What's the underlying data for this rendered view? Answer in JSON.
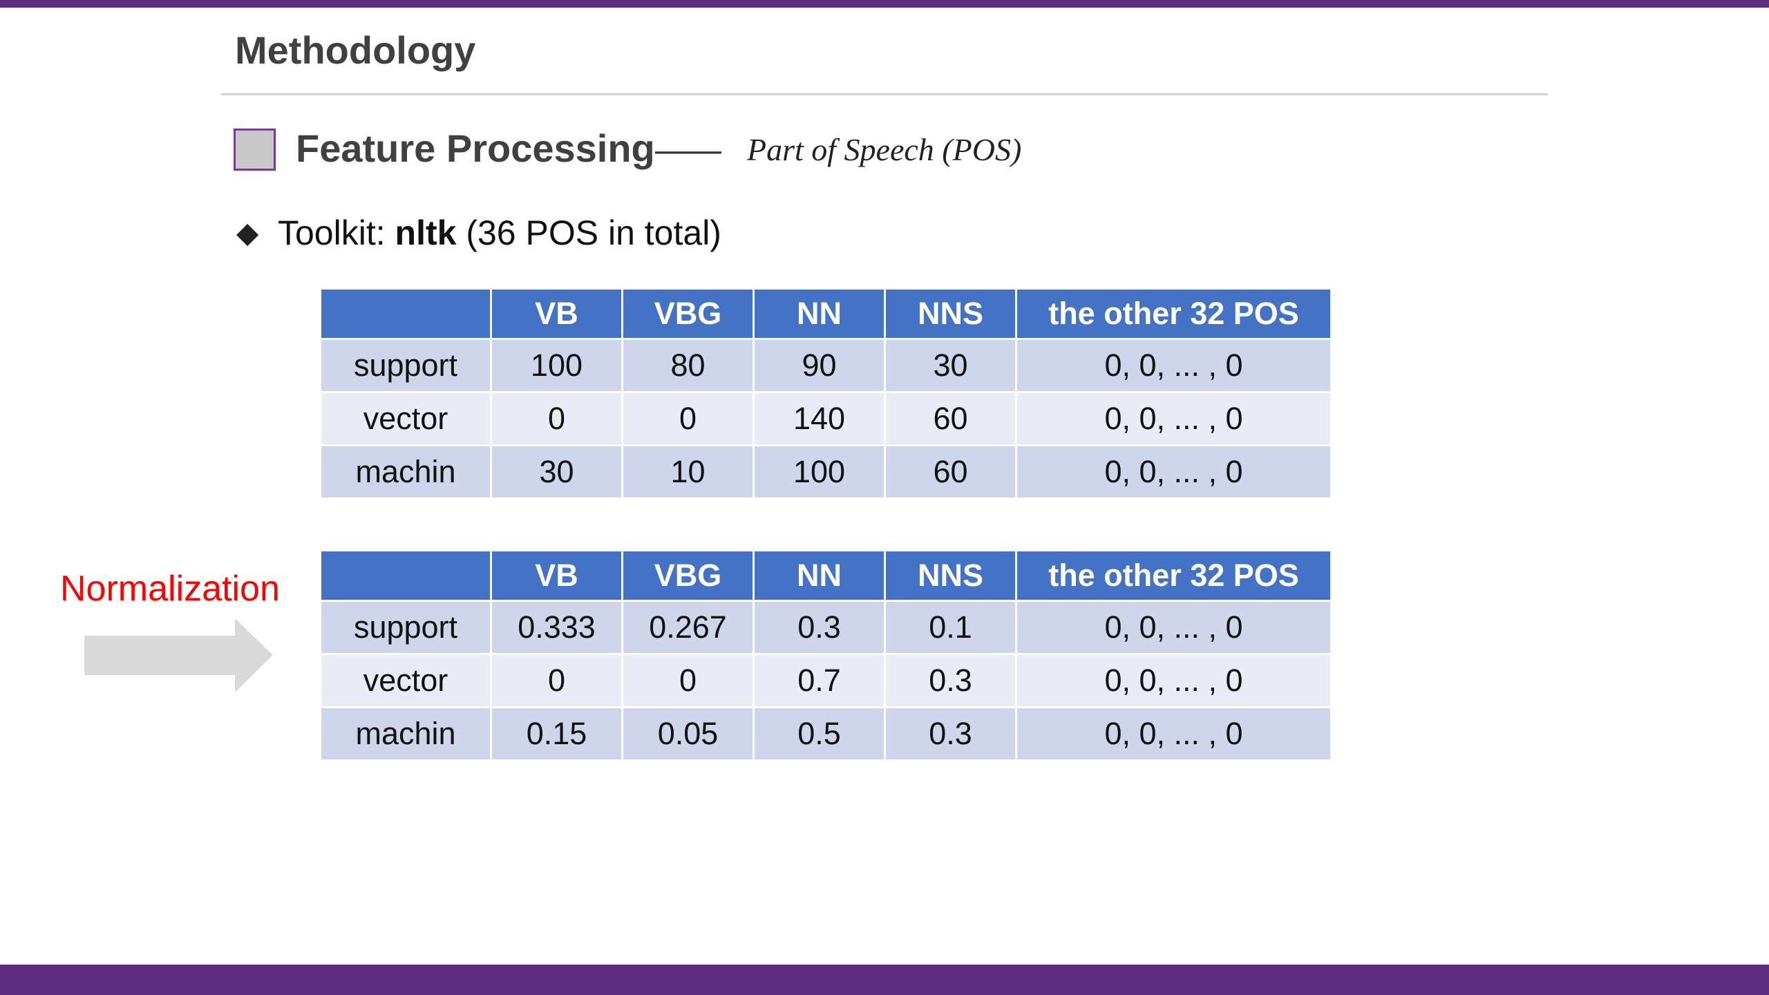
{
  "header": {
    "title": "Methodology"
  },
  "section": {
    "heading": "Feature Processing",
    "dash": "——",
    "subtitle": "Part of Speech (POS)"
  },
  "toolkit": {
    "label": "Toolkit:",
    "name": "nltk",
    "note": "(36 POS in total)"
  },
  "arrow_label": "Normalization",
  "tables": [
    {
      "header": [
        null,
        "VB",
        "VBG",
        "NN",
        "NNS",
        "the other 32 POS"
      ],
      "rows": [
        [
          "support",
          "100",
          "80",
          "90",
          "30",
          "0, 0, ... , 0"
        ],
        [
          "vector",
          "0",
          "0",
          "140",
          "60",
          "0, 0, ... , 0"
        ],
        [
          "machin",
          "30",
          "10",
          "100",
          "60",
          "0, 0, ... , 0"
        ]
      ]
    },
    {
      "header": [
        null,
        "VB",
        "VBG",
        "NN",
        "NNS",
        "the other 32 POS"
      ],
      "rows": [
        [
          "support",
          "0.333",
          "0.267",
          "0.3",
          "0.1",
          "0, 0, ... , 0"
        ],
        [
          "vector",
          "0",
          "0",
          "0.7",
          "0.3",
          "0, 0, ... , 0"
        ],
        [
          "machin",
          "0.15",
          "0.05",
          "0.5",
          "0.3",
          "0, 0, ... , 0"
        ]
      ]
    }
  ]
}
